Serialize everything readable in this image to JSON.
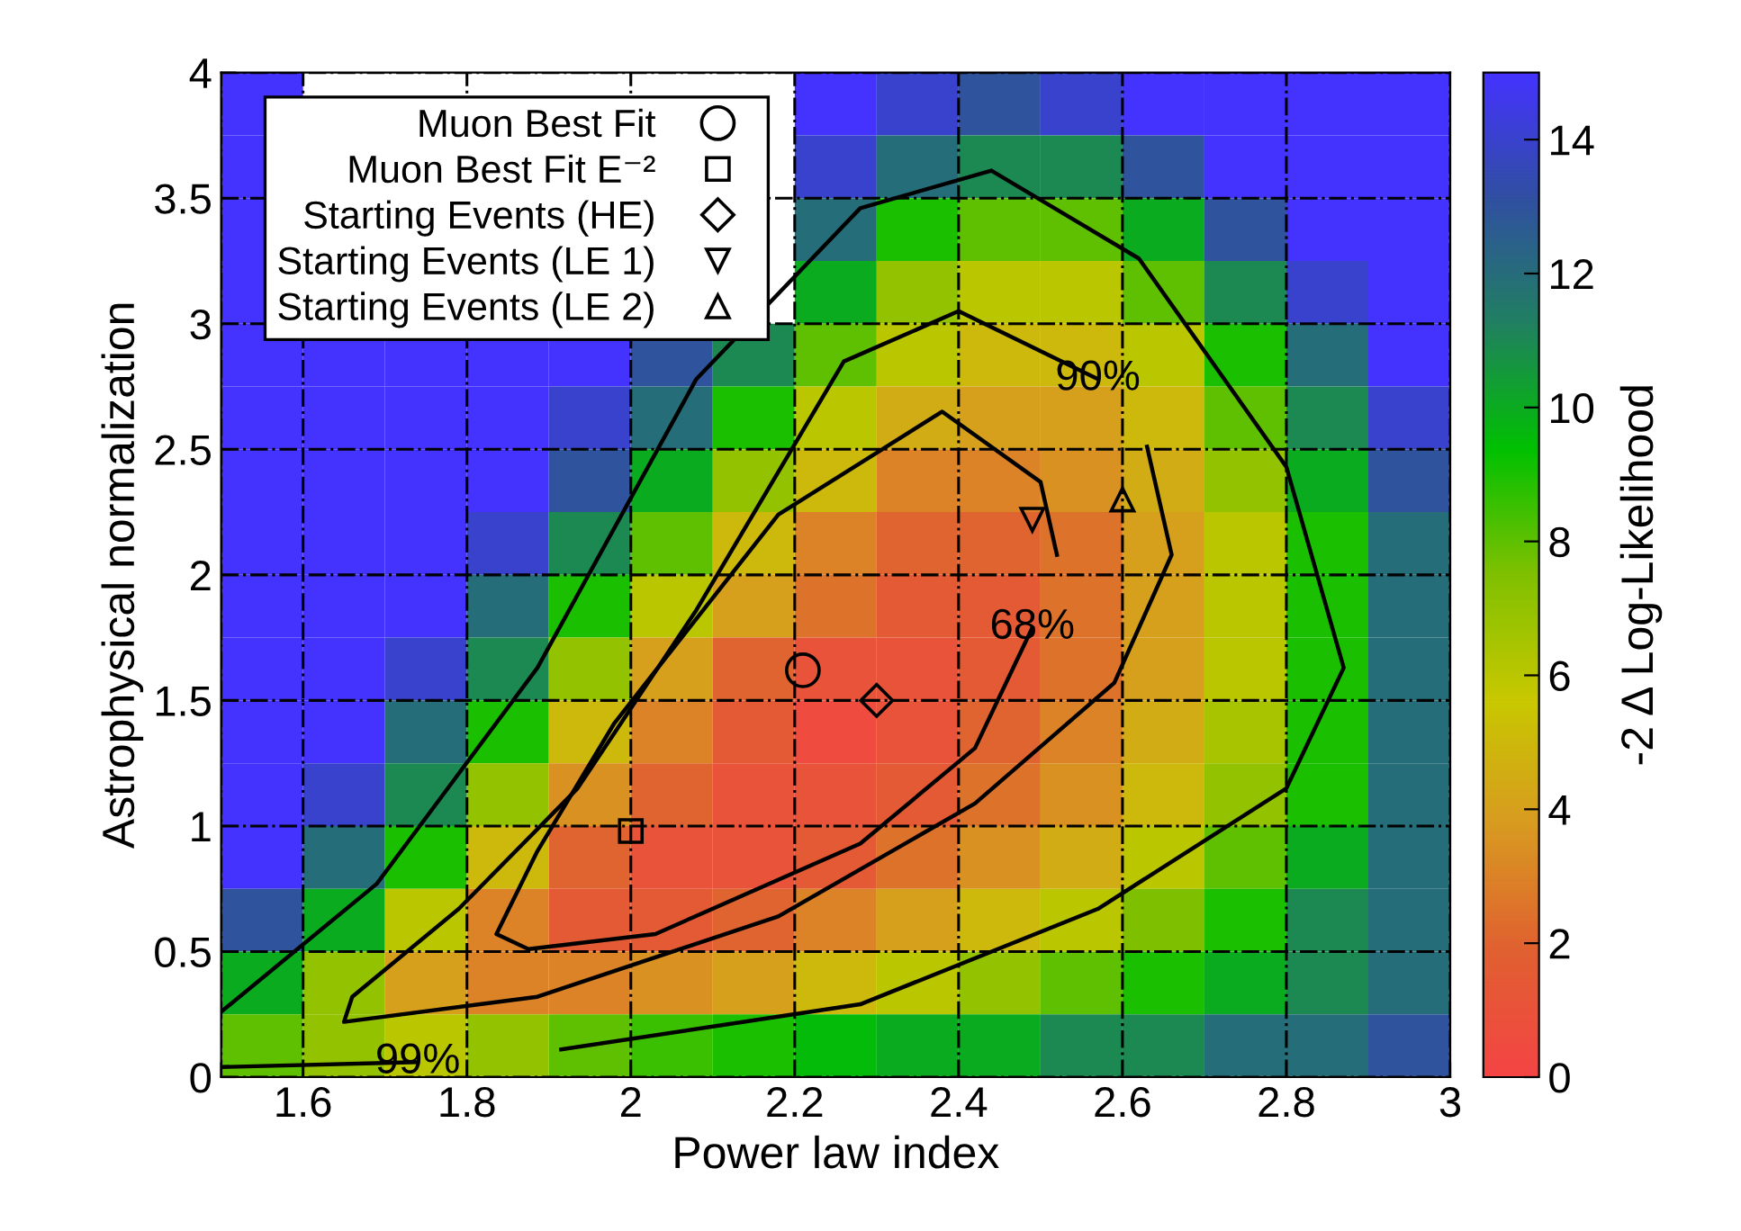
{
  "chart_data": {
    "type": "heatmap",
    "xlabel": "Power law index",
    "ylabel": "Astrophysical normalization",
    "clabel": "-2 Δ Log-Likelihood",
    "xlim": [
      1.5,
      3
    ],
    "xticks": [
      {
        "value": 1.5,
        "label": null
      },
      1.6,
      1.8,
      2,
      2.2,
      2.4,
      2.6,
      2.8,
      3
    ],
    "ylim": [
      0,
      4
    ],
    "yticks": [
      0,
      0.5,
      1,
      1.5,
      2,
      2.5,
      3,
      3.5,
      4
    ],
    "clim": [
      0,
      15
    ],
    "cticks": [
      0,
      2,
      4,
      6,
      8,
      10,
      12,
      14
    ],
    "colors": [
      "#f44444",
      "#e06030",
      "#d89a20",
      "#c8c800",
      "#80c000",
      "#00c000",
      "#208060",
      "#3050a0",
      "#4433ff"
    ],
    "x": [
      1.55,
      1.65,
      1.75,
      1.85,
      1.95,
      2.05,
      2.15,
      2.25,
      2.35,
      2.45,
      2.55,
      2.65,
      2.75,
      2.85,
      2.95
    ],
    "y": [
      3.875,
      3.625,
      3.375,
      3.125,
      2.875,
      2.625,
      2.375,
      2.125,
      1.875,
      1.625,
      1.375,
      1.125,
      0.875,
      0.625,
      0.375,
      0.125
    ],
    "cells": [
      [
        15,
        null,
        null,
        null,
        null,
        null,
        null,
        15,
        14,
        13,
        14,
        15,
        15,
        15,
        15
      ],
      [
        15,
        null,
        null,
        null,
        null,
        null,
        null,
        14,
        12,
        11,
        11,
        13,
        15,
        15,
        15
      ],
      [
        15,
        null,
        null,
        null,
        null,
        null,
        null,
        12,
        9,
        8,
        8,
        10,
        13,
        15,
        15
      ],
      [
        15,
        null,
        null,
        null,
        null,
        null,
        null,
        10,
        7,
        6,
        6,
        8,
        11,
        14,
        15
      ],
      [
        15,
        15,
        15,
        15,
        15,
        13,
        11,
        8,
        6,
        5,
        5,
        6,
        9,
        12,
        15
      ],
      [
        15,
        15,
        15,
        15,
        14,
        12,
        9,
        6,
        4.5,
        4,
        4,
        5,
        8,
        11,
        14
      ],
      [
        15,
        15,
        15,
        15,
        13,
        10,
        7,
        5,
        3,
        3,
        3.5,
        4.5,
        7,
        10,
        13
      ],
      [
        15,
        15,
        15,
        14,
        11,
        8,
        5,
        3,
        2,
        2,
        2.5,
        4,
        6,
        9,
        12
      ],
      [
        15,
        15,
        15,
        12,
        9,
        6,
        4,
        2.5,
        1.5,
        1.5,
        2.5,
        4,
        6,
        9,
        12
      ],
      [
        15,
        15,
        14,
        11,
        7,
        4,
        2,
        1,
        1,
        1.5,
        2.5,
        4,
        6,
        9,
        12
      ],
      [
        15,
        15,
        12,
        9,
        5,
        3,
        1.5,
        0.5,
        1,
        2,
        3,
        4.5,
        6.5,
        9,
        12
      ],
      [
        15,
        14,
        11,
        7,
        3.5,
        2,
        1,
        1,
        1.5,
        2.5,
        3.5,
        5,
        7,
        9,
        12
      ],
      [
        15,
        12,
        9,
        5,
        2,
        1,
        1,
        1.5,
        2.5,
        3.5,
        4.5,
        6,
        8,
        10,
        12
      ],
      [
        13,
        10,
        6,
        3,
        1.5,
        1.5,
        2,
        3,
        4,
        5,
        6,
        7.5,
        9,
        11,
        12
      ],
      [
        10,
        7,
        4,
        3,
        3,
        3.5,
        4,
        5,
        6,
        7,
        8,
        9,
        10,
        11,
        12
      ],
      [
        8,
        7,
        6,
        7,
        8,
        8.5,
        9,
        9.5,
        10,
        10,
        11,
        11,
        12,
        12,
        13
      ]
    ],
    "grid": true,
    "legend": "top left",
    "series": [
      {
        "type": "line",
        "color": "#000000",
        "x": [
          2.49,
          2.42,
          2.28,
          2.03,
          1.875,
          1.836,
          1.886,
          1.98,
          2.18,
          2.38,
          2.5,
          2.52
        ],
        "values": [
          1.79,
          1.31,
          0.93,
          0.57,
          0.51,
          0.57,
          0.9,
          1.41,
          2.24,
          2.65,
          2.37,
          2.08
        ]
      },
      {
        "type": "line",
        "color": "#000000",
        "x": [
          2.63,
          2.66,
          2.59,
          2.42,
          2.18,
          1.886,
          1.65,
          1.66,
          1.79,
          1.935,
          2.08,
          2.26,
          2.4,
          2.57
        ],
        "values": [
          2.51,
          2.08,
          1.57,
          1.09,
          0.64,
          0.32,
          0.22,
          0.32,
          0.67,
          1.15,
          1.86,
          2.85,
          3.05,
          2.78
        ]
      },
      {
        "type": "line",
        "color": "#000000",
        "x": [
          1.915,
          2.28,
          2.57,
          2.8,
          2.87,
          2.8,
          2.62,
          2.44,
          2.28,
          2.08,
          1.886,
          1.69,
          1.5
        ],
        "values": [
          0.11,
          0.29,
          0.67,
          1.15,
          1.63,
          2.43,
          3.26,
          3.61,
          3.46,
          2.78,
          1.63,
          0.77,
          0.26
        ]
      },
      {
        "type": "line",
        "color": "#000000",
        "x": [
          1.5,
          1.74
        ],
        "values": [
          0.04,
          0.06
        ]
      },
      {
        "type": "scatter",
        "name": "Muon Best Fit",
        "color": "#000000",
        "marker": "circle",
        "x": [
          2.21
        ],
        "values": [
          1.62
        ]
      },
      {
        "type": "scatter",
        "name": "Muon Best Fit E⁻²",
        "color": "#000000",
        "marker": "square",
        "x": [
          2.0
        ],
        "values": [
          0.98
        ]
      },
      {
        "type": "scatter",
        "name": "Starting Events (HE)",
        "color": "#000000",
        "marker": "diamond",
        "x": [
          2.3
        ],
        "values": [
          1.5
        ]
      },
      {
        "type": "scatter",
        "name": "Starting Events (LE 1)",
        "color": "#000000",
        "marker": "triangle_down",
        "x": [
          2.49
        ],
        "values": [
          2.22
        ]
      },
      {
        "type": "scatter",
        "name": "Starting Events (LE 2)",
        "color": "#000000",
        "marker": "triangle",
        "x": [
          2.6
        ],
        "values": [
          2.3
        ]
      }
    ],
    "annotations": [
      {
        "text": "68%",
        "x": 2.49,
        "y": 1.79
      },
      {
        "text": "90%",
        "x": 2.57,
        "y": 2.78
      },
      {
        "text": "99%",
        "x": 1.74,
        "y": 0.06
      }
    ]
  }
}
